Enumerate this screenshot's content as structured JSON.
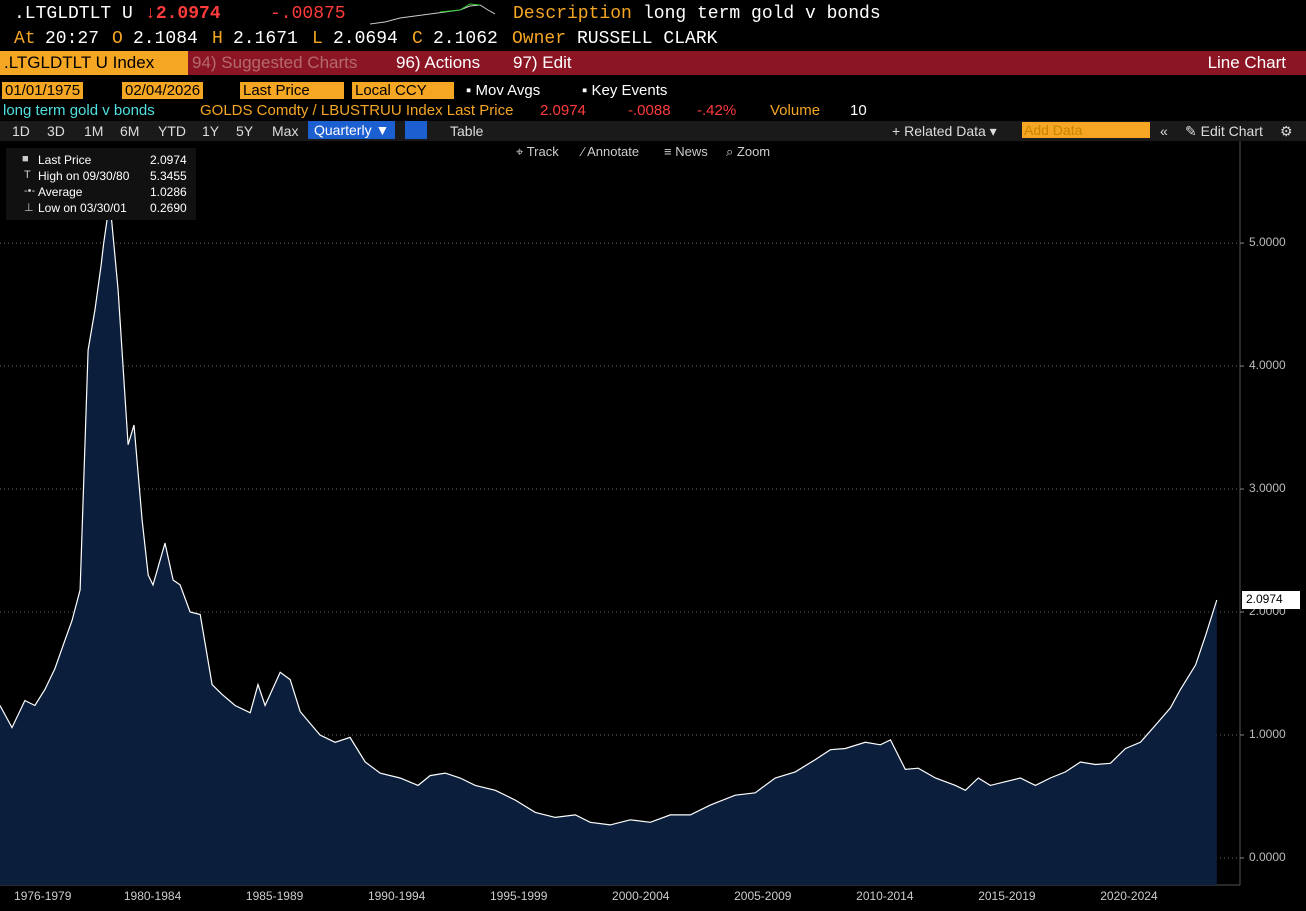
{
  "header": {
    "ticker": ".LTGLDTLT U",
    "last": "2.0974",
    "change": "-.00875",
    "desc_label": "Description",
    "desc": "long term gold v bonds",
    "at_label": "At",
    "time": "20:27",
    "open_label": "O",
    "open": "2.1084",
    "high_label": "H",
    "high": "2.1671",
    "low_label": "L",
    "low": "2.0694",
    "close_label": "C",
    "close": "2.1062",
    "owner_label": "Owner",
    "owner": "RUSSELL CLARK"
  },
  "menu": {
    "security": ".LTGLDTLT U Index",
    "suggested": "94) Suggested Charts",
    "actions": "96) Actions",
    "edit": "97) Edit",
    "chart_kind": "Line Chart"
  },
  "controls": {
    "start": "01/01/1975",
    "end": "02/04/2026",
    "field": "Last Price",
    "ccy": "Local CCY",
    "mov_avgs": "Mov Avgs",
    "key_events": "Key Events"
  },
  "info": {
    "name": "long term gold v bonds",
    "expr": "GOLDS Comdty / LBUSTRUU Index Last Price",
    "last": "2.0974",
    "change": "-.0088",
    "pct": "-.42%",
    "volume_label": "Volume",
    "volume": "10"
  },
  "periods": [
    "1D",
    "3D",
    "1M",
    "6M",
    "YTD",
    "1Y",
    "5Y",
    "Max"
  ],
  "toolbar": {
    "frequency": "Quarterly",
    "table": "Table",
    "related": "Related Data",
    "add": "Add Data",
    "edit_chart": "Edit Chart"
  },
  "tools": [
    "Track",
    "Annotate",
    "News",
    "Zoom"
  ],
  "legend": [
    [
      "Last Price",
      "2.0974"
    ],
    [
      "High on 09/30/80",
      "5.3455"
    ],
    [
      "Average",
      "1.0286"
    ],
    [
      "Low on 03/30/01",
      "0.2690"
    ]
  ],
  "chart_data": {
    "type": "area",
    "color": "#0b1f3c",
    "line_color": "#ffffff",
    "grid": true,
    "x": [
      1976.25,
      1976.74,
      1977.27,
      1977.68,
      1978.09,
      1978.5,
      1978.91,
      1979.2,
      1979.53,
      1979.86,
      1980.14,
      1980.39,
      1980.5,
      1980.75,
      1981.09,
      1981.5,
      1981.74,
      1982.07,
      1982.32,
      1982.52,
      1983.01,
      1983.34,
      1983.63,
      1984.04,
      1984.45,
      1984.94,
      1985.35,
      1985.88,
      1986.5,
      1986.82,
      1987.11,
      1987.73,
      1988.14,
      1988.55,
      1989.36,
      1989.98,
      1990.59,
      1991.21,
      1991.82,
      1992.64,
      1993.38,
      1993.87,
      1994.49,
      1995.1,
      1995.72,
      1996.54,
      1997.36,
      1998.18,
      1999.0,
      1999.82,
      2000.43,
      2001.25,
      2002.07,
      2002.89,
      2003.71,
      2004.53,
      2005.35,
      2006.37,
      2007.19,
      2008.01,
      2008.83,
      2009.65,
      2010.27,
      2010.88,
      2011.7,
      2012.32,
      2012.73,
      2013.34,
      2013.87,
      2014.57,
      2015.39,
      2015.8,
      2016.33,
      2016.82,
      2017.44,
      2018.05,
      2018.67,
      2019.28,
      2019.9,
      2020.51,
      2021.13,
      2021.74,
      2022.36,
      2022.97,
      2023.59,
      2024.2,
      2024.61,
      2025.23,
      2025.64,
      2026.1
    ],
    "values": [
      1.24,
      1.06,
      1.28,
      1.24,
      1.37,
      1.54,
      1.77,
      1.93,
      2.18,
      4.13,
      4.46,
      4.82,
      5.0,
      5.3455,
      4.62,
      3.36,
      3.52,
      2.75,
      2.3,
      2.22,
      2.56,
      2.26,
      2.22,
      2.0,
      1.98,
      1.41,
      1.33,
      1.24,
      1.18,
      1.41,
      1.24,
      1.51,
      1.45,
      1.19,
      1.0,
      0.94,
      0.98,
      0.78,
      0.69,
      0.65,
      0.59,
      0.67,
      0.69,
      0.65,
      0.59,
      0.55,
      0.47,
      0.37,
      0.33,
      0.35,
      0.29,
      0.269,
      0.31,
      0.29,
      0.35,
      0.35,
      0.43,
      0.51,
      0.53,
      0.65,
      0.7,
      0.8,
      0.88,
      0.89,
      0.94,
      0.92,
      0.96,
      0.72,
      0.73,
      0.65,
      0.59,
      0.55,
      0.65,
      0.59,
      0.62,
      0.65,
      0.59,
      0.65,
      0.7,
      0.78,
      0.76,
      0.77,
      0.89,
      0.94,
      1.08,
      1.22,
      1.37,
      1.57,
      1.81,
      2.0974
    ],
    "xlim": [
      1976.25,
      2027.05
    ],
    "ylim": [
      -0.22,
      5.83
    ],
    "yticks": [
      {
        "value": 0,
        "label": "0.0000"
      },
      {
        "value": 1,
        "label": "1.0000"
      },
      {
        "value": 2,
        "label": "2.0000"
      },
      {
        "value": 3,
        "label": "3.0000"
      },
      {
        "value": 4,
        "label": "4.0000"
      },
      {
        "value": 5,
        "label": "5.0000"
      }
    ],
    "xticks": [
      {
        "value": 1978,
        "label": "1976-1979"
      },
      {
        "value": 1982.5,
        "label": "1980-1984"
      },
      {
        "value": 1987.5,
        "label": "1985-1989"
      },
      {
        "value": 1992.5,
        "label": "1990-1994"
      },
      {
        "value": 1997.5,
        "label": "1995-1999"
      },
      {
        "value": 2002.5,
        "label": "2000-2004"
      },
      {
        "value": 2007.5,
        "label": "2005-2009"
      },
      {
        "value": 2012.5,
        "label": "2010-2014"
      },
      {
        "value": 2017.5,
        "label": "2015-2019"
      },
      {
        "value": 2022.5,
        "label": "2020-2024"
      }
    ]
  }
}
